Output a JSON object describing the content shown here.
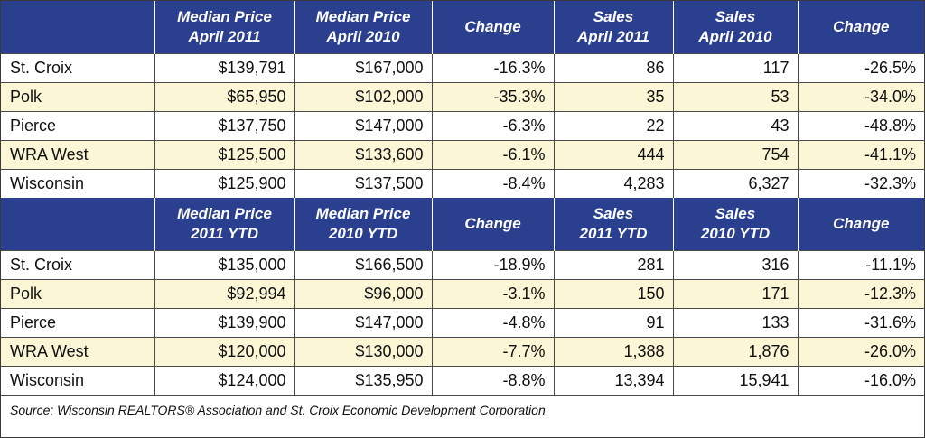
{
  "april_section": {
    "headers": [
      {
        "line1": "",
        "line2": ""
      },
      {
        "line1": "Median Price",
        "line2": "April 2011"
      },
      {
        "line1": "Median Price",
        "line2": "April 2010"
      },
      {
        "line1": "Change",
        "line2": ""
      },
      {
        "line1": "Sales",
        "line2": "April 2011"
      },
      {
        "line1": "Sales",
        "line2": "April 2010"
      },
      {
        "line1": "Change",
        "line2": ""
      }
    ],
    "rows": [
      {
        "area": "St. Croix",
        "cells": [
          "$139,791",
          "$167,000",
          "-16.3%",
          "86",
          "117",
          "-26.5%"
        ],
        "shaded": false
      },
      {
        "area": "Polk",
        "cells": [
          "$65,950",
          "$102,000",
          "-35.3%",
          "35",
          "53",
          "-34.0%"
        ],
        "shaded": true
      },
      {
        "area": "Pierce",
        "cells": [
          "$137,750",
          "$147,000",
          "-6.3%",
          "22",
          "43",
          "-48.8%"
        ],
        "shaded": false
      },
      {
        "area": "WRA West",
        "cells": [
          "$125,500",
          "$133,600",
          "-6.1%",
          "444",
          "754",
          "-41.1%"
        ],
        "shaded": true
      },
      {
        "area": "Wisconsin",
        "cells": [
          "$125,900",
          "$137,500",
          "-8.4%",
          "4,283",
          "6,327",
          "-32.3%"
        ],
        "shaded": false
      }
    ]
  },
  "ytd_section": {
    "headers": [
      {
        "line1": "",
        "line2": ""
      },
      {
        "line1": "Median Price",
        "line2": "2011 YTD"
      },
      {
        "line1": "Median Price",
        "line2": "2010 YTD"
      },
      {
        "line1": "Change",
        "line2": ""
      },
      {
        "line1": "Sales",
        "line2": "2011 YTD"
      },
      {
        "line1": "Sales",
        "line2": "2010 YTD"
      },
      {
        "line1": "Change",
        "line2": ""
      }
    ],
    "rows": [
      {
        "area": "St. Croix",
        "cells": [
          "$135,000",
          "$166,500",
          "-18.9%",
          "281",
          "316",
          "-11.1%"
        ],
        "shaded": false
      },
      {
        "area": "Polk",
        "cells": [
          "$92,994",
          "$96,000",
          "-3.1%",
          "150",
          "171",
          "-12.3%"
        ],
        "shaded": true
      },
      {
        "area": "Pierce",
        "cells": [
          "$139,900",
          "$147,000",
          "-4.8%",
          "91",
          "133",
          "-31.6%"
        ],
        "shaded": false
      },
      {
        "area": "WRA West",
        "cells": [
          "$120,000",
          "$130,000",
          "-7.7%",
          "1,388",
          "1,876",
          "-26.0%"
        ],
        "shaded": true
      },
      {
        "area": "Wisconsin",
        "cells": [
          "$124,000",
          "$135,950",
          "-8.8%",
          "13,394",
          "15,941",
          "-16.0%"
        ],
        "shaded": false
      }
    ]
  },
  "source": "Source: Wisconsin REALTORS® Association and St. Croix Economic Development Corporation",
  "colors": {
    "header_bg": "#2b3f8f",
    "header_text": "#ffffff",
    "shaded_row": "#fbf6d5",
    "border": "#4a4a4a"
  }
}
